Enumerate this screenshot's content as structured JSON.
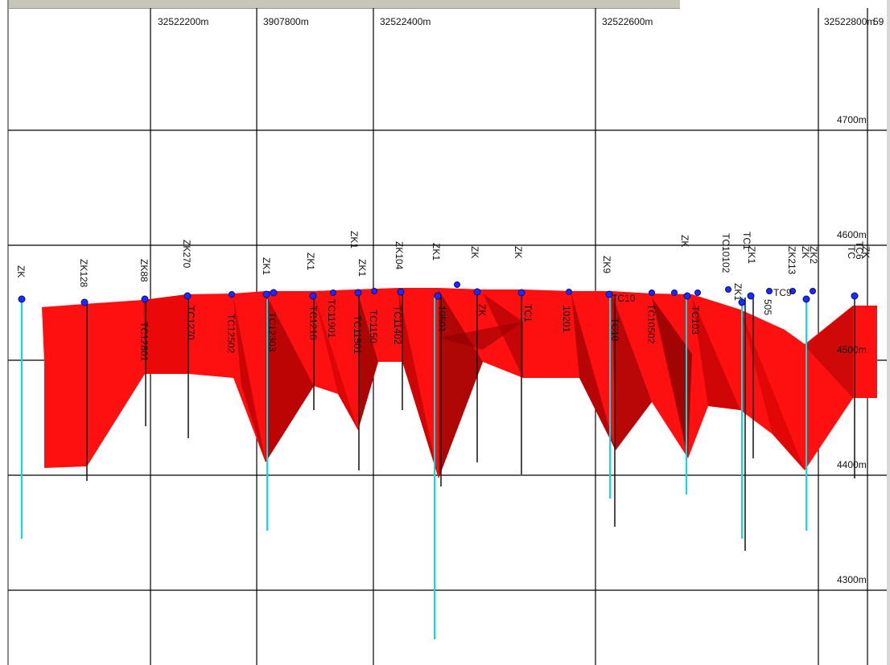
{
  "section": {
    "x_axis_labels": [
      "32522200m",
      "3907800m",
      "32522400m",
      "32522600m",
      "32522800m",
      "59"
    ],
    "y_axis_labels": [
      "4700m",
      "4600m",
      "4500m",
      "4400m",
      "4300m"
    ],
    "hole_labels": [
      "ZK",
      "ZK128",
      "ZK88",
      "ZK270",
      "TC12801",
      "TC1270",
      "TC12502",
      "ZK1",
      "TC12303",
      "ZK1",
      "TC1210",
      "TC11901",
      "ZK1",
      "ZK1",
      "TC11501",
      "TC1150",
      "ZK104",
      "TC11402",
      "ZK1",
      "ZK",
      "ZK",
      "TC1",
      "ZK",
      "10201",
      "10501",
      "ZK9",
      "TC10",
      "TC10",
      "TC10502",
      "ZK",
      "TC103",
      "TC10102",
      "TC1",
      "ZK1",
      "ZK1",
      "TC9",
      "505",
      "ZK213",
      "ZK",
      "ZK2",
      "TC6",
      "TC",
      "ZK"
    ]
  },
  "colors": {
    "body_fill": "#ff0000",
    "body_shadow": "#8a0000",
    "grid": "#000000",
    "collar": "#1a2bff",
    "drill_trace": "#00e0e8",
    "drill_core": "#000000"
  }
}
